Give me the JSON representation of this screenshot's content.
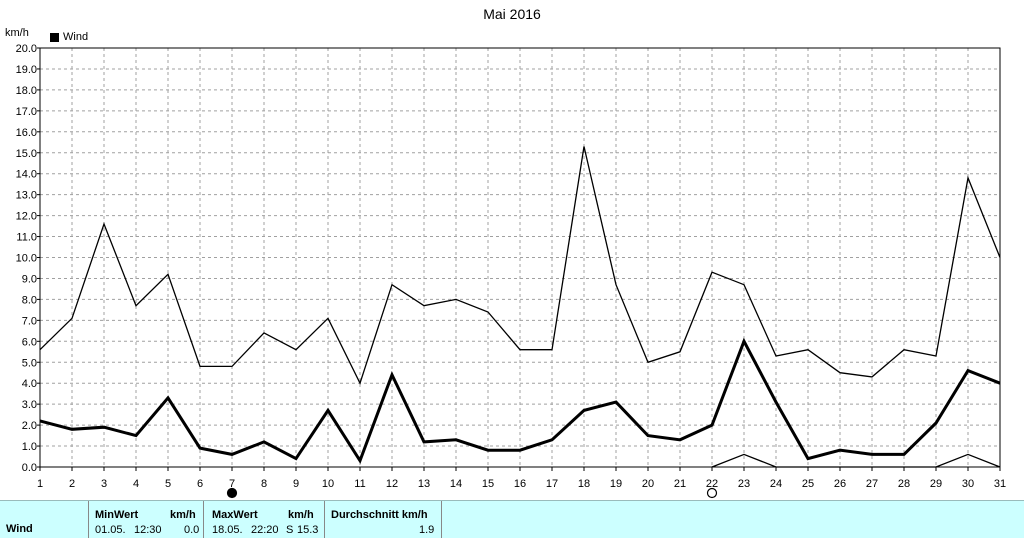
{
  "header": {
    "title": "Mai 2016",
    "unit": "km/h",
    "legend_label": "Wind"
  },
  "chart_data": {
    "type": "line",
    "title": "Mai 2016",
    "ylabel": "km/h",
    "xlabel": "",
    "x": [
      1,
      2,
      3,
      4,
      5,
      6,
      7,
      8,
      9,
      10,
      11,
      12,
      13,
      14,
      15,
      16,
      17,
      18,
      19,
      20,
      21,
      22,
      23,
      24,
      25,
      26,
      27,
      28,
      29,
      30,
      31
    ],
    "ylim": [
      0,
      20
    ],
    "y_ticks": [
      "0.0",
      "1.0",
      "2.0",
      "3.0",
      "4.0",
      "5.0",
      "6.0",
      "7.0",
      "8.0",
      "9.0",
      "10.0",
      "11.0",
      "12.0",
      "13.0",
      "14.0",
      "15.0",
      "16.0",
      "17.0",
      "18.0",
      "19.0",
      "20.0"
    ],
    "grid": true,
    "legend_position": "top-left",
    "series": [
      {
        "name": "Wind",
        "style": "bold",
        "values": [
          2.2,
          1.8,
          1.9,
          1.5,
          3.3,
          0.9,
          0.6,
          1.2,
          0.4,
          2.7,
          0.3,
          4.4,
          1.2,
          1.3,
          0.8,
          0.8,
          1.3,
          2.7,
          3.1,
          1.5,
          1.3,
          2.0,
          6.0,
          3.1,
          0.4,
          0.8,
          0.6,
          0.6,
          2.1,
          4.6,
          4.0
        ]
      },
      {
        "style": "thin",
        "values": [
          5.6,
          7.1,
          11.6,
          7.7,
          9.2,
          4.8,
          4.8,
          6.4,
          5.6,
          7.1,
          4.0,
          8.7,
          7.7,
          8.0,
          7.4,
          5.6,
          5.6,
          15.3,
          8.7,
          5.0,
          5.5,
          9.3,
          8.7,
          5.3,
          5.6,
          4.5,
          4.3,
          5.6,
          5.3,
          13.8,
          10.0
        ]
      },
      {
        "style": "thin",
        "x": [
          22,
          23,
          24,
          29,
          30,
          31
        ],
        "values": [
          0.0,
          0.6,
          0.0,
          0.0,
          0.6,
          0.0
        ]
      }
    ],
    "markers": [
      {
        "x": 7,
        "symbol": "filled-circle"
      },
      {
        "x": 22,
        "symbol": "open-circle"
      }
    ]
  },
  "stats": {
    "row_label": "Wind",
    "min_header": "MinWert",
    "min_unit": "km/h",
    "min_date": "01.05.",
    "min_time": "12:30",
    "min_value": "0.0",
    "max_header": "MaxWert",
    "max_unit": "km/h",
    "max_date": "18.05.",
    "max_time": "22:20",
    "max_dir": "S",
    "max_value": "15.3",
    "avg_header": "Durchschnitt km/h",
    "avg_value": "1.9"
  }
}
